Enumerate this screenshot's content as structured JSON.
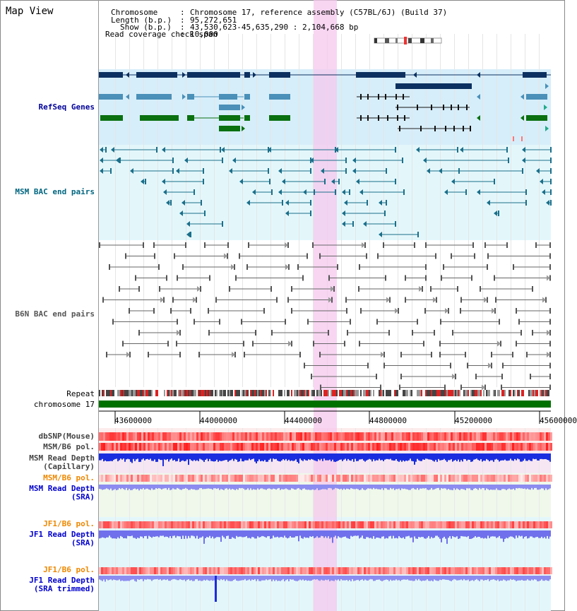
{
  "app": {
    "title": "Map View"
  },
  "info": {
    "chromosome_label": "Chromosome",
    "chromosome_value": "Chromosome 17, reference assembly (C57BL/6J) (Build 37)",
    "length_label": "Length (b.p.)",
    "length_value": "95,272,651",
    "show_label": "Show (b.p.)",
    "show_value": "43,530,623-45,635,290 : 2,104,668 bp",
    "coverage_label": "Read coverage check span",
    "coverage_value": "10,000"
  },
  "tracks": {
    "refseq": "RefSeq Genes",
    "msm_bac": "MSM BAC end pairs",
    "b6n_bac": "B6N BAC end pairs",
    "repeat": "Repeat",
    "chromosome": "chromosome 17",
    "dbsnp": "dbSNP(Mouse)",
    "msm_pol_1": "MSM/B6 pol.",
    "msm_depth_cap": "MSM Read Depth\n(Capillary)",
    "msm_pol_2": "MSM/B6 pol.",
    "msm_depth_sra": "MSM Read Depth\n(SRA)",
    "jf1_pol_1": "JF1/B6 pol.",
    "jf1_depth_sra": "JF1 Read Depth\n(SRA)",
    "jf1_pol_2": "JF1/B6 pol.",
    "jf1_depth_trim": "JF1 Read Depth\n(SRA trimmed)"
  },
  "axis": {
    "ticks": [
      "43600000",
      "44000000",
      "44400000",
      "44800000",
      "45200000",
      "45600000"
    ]
  },
  "colors": {
    "refseq_label": "#000099",
    "msm_bac_label": "#006680",
    "b6n_bac_label": "#555555",
    "pol_label_orange": "#ee8800",
    "depth_label_blue": "#0000cc",
    "highlight": "#f5c8ee",
    "refseq_bg": "#d6eefa",
    "msm_bg": "#e3f7fb",
    "chromosome_green": "#007000"
  }
}
